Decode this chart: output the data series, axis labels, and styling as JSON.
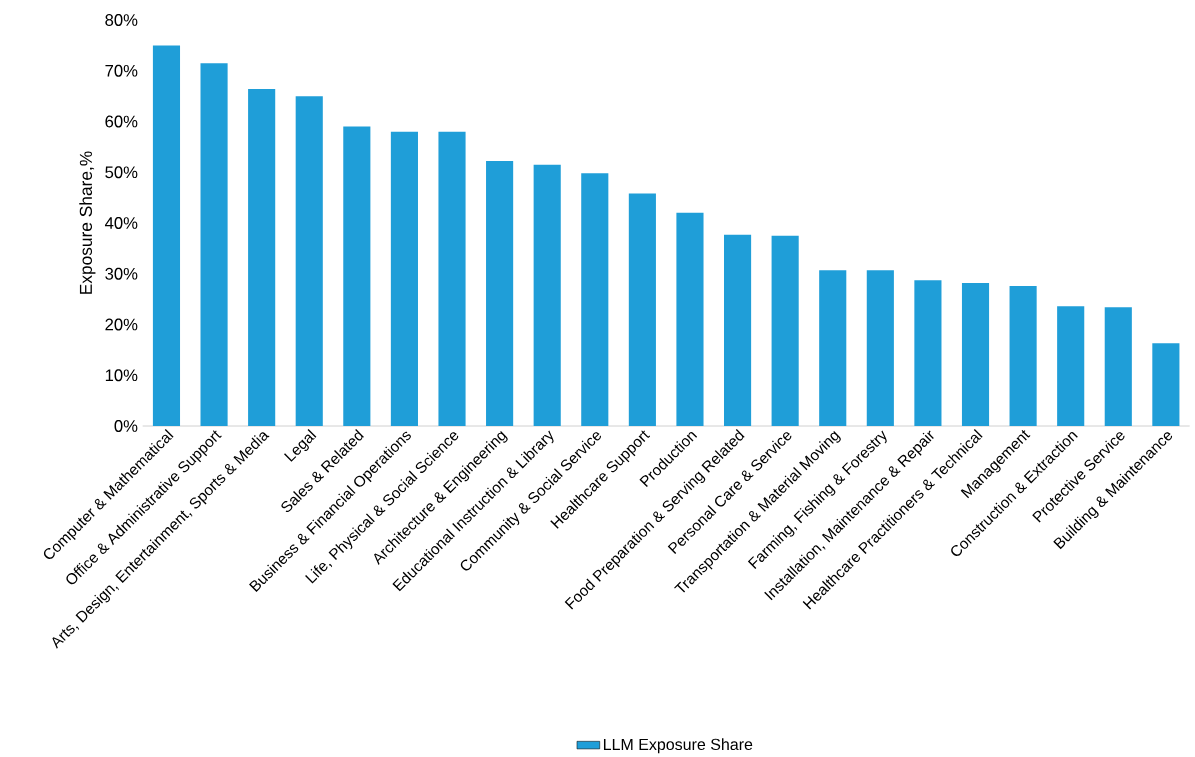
{
  "chart_data": {
    "type": "bar",
    "ylabel": "Exposure Share,%",
    "categories": [
      "Computer & Mathematical",
      "Office & Administrative Support",
      "Arts, Design, Entertainment, Sports & Media",
      "Legal",
      "Sales & Related",
      "Business & Financial Operations",
      "Life, Physical & Social Science",
      "Architecture & Engineering",
      "Educational Instruction & Library",
      "Community & Social Service",
      "Healthcare Support",
      "Production",
      "Food Preparation & Serving Related",
      "Personal Care & Service",
      "Transportation & Material Moving",
      "Farming, Fishing & Forestry",
      "Installation, Maintenance & Repair",
      "Healthcare Practitioners & Technical",
      "Management",
      "Construction & Extraction",
      "Protective Service",
      "Building & Maintenance"
    ],
    "series": [
      {
        "name": "LLM Exposure Share",
        "color": "#1f9ed8",
        "values": [
          75,
          71.5,
          66.4,
          65,
          59,
          58,
          58,
          52.2,
          51.5,
          49.8,
          45.8,
          42,
          37.7,
          37.5,
          30.7,
          30.7,
          28.7,
          28.2,
          27.6,
          23.6,
          23.4,
          16.3
        ]
      }
    ],
    "ylim": [
      0,
      80
    ],
    "yticks": [
      {
        "value": 0,
        "label": "0%"
      },
      {
        "value": 10,
        "label": "10%"
      },
      {
        "value": 20,
        "label": "20%"
      },
      {
        "value": 30,
        "label": "30%"
      },
      {
        "value": 40,
        "label": "40%"
      },
      {
        "value": 50,
        "label": "50%"
      },
      {
        "value": 60,
        "label": "60%"
      },
      {
        "value": 70,
        "label": "70%"
      },
      {
        "value": 80,
        "label": "80%"
      }
    ],
    "grid": false,
    "legend": "bottom"
  }
}
